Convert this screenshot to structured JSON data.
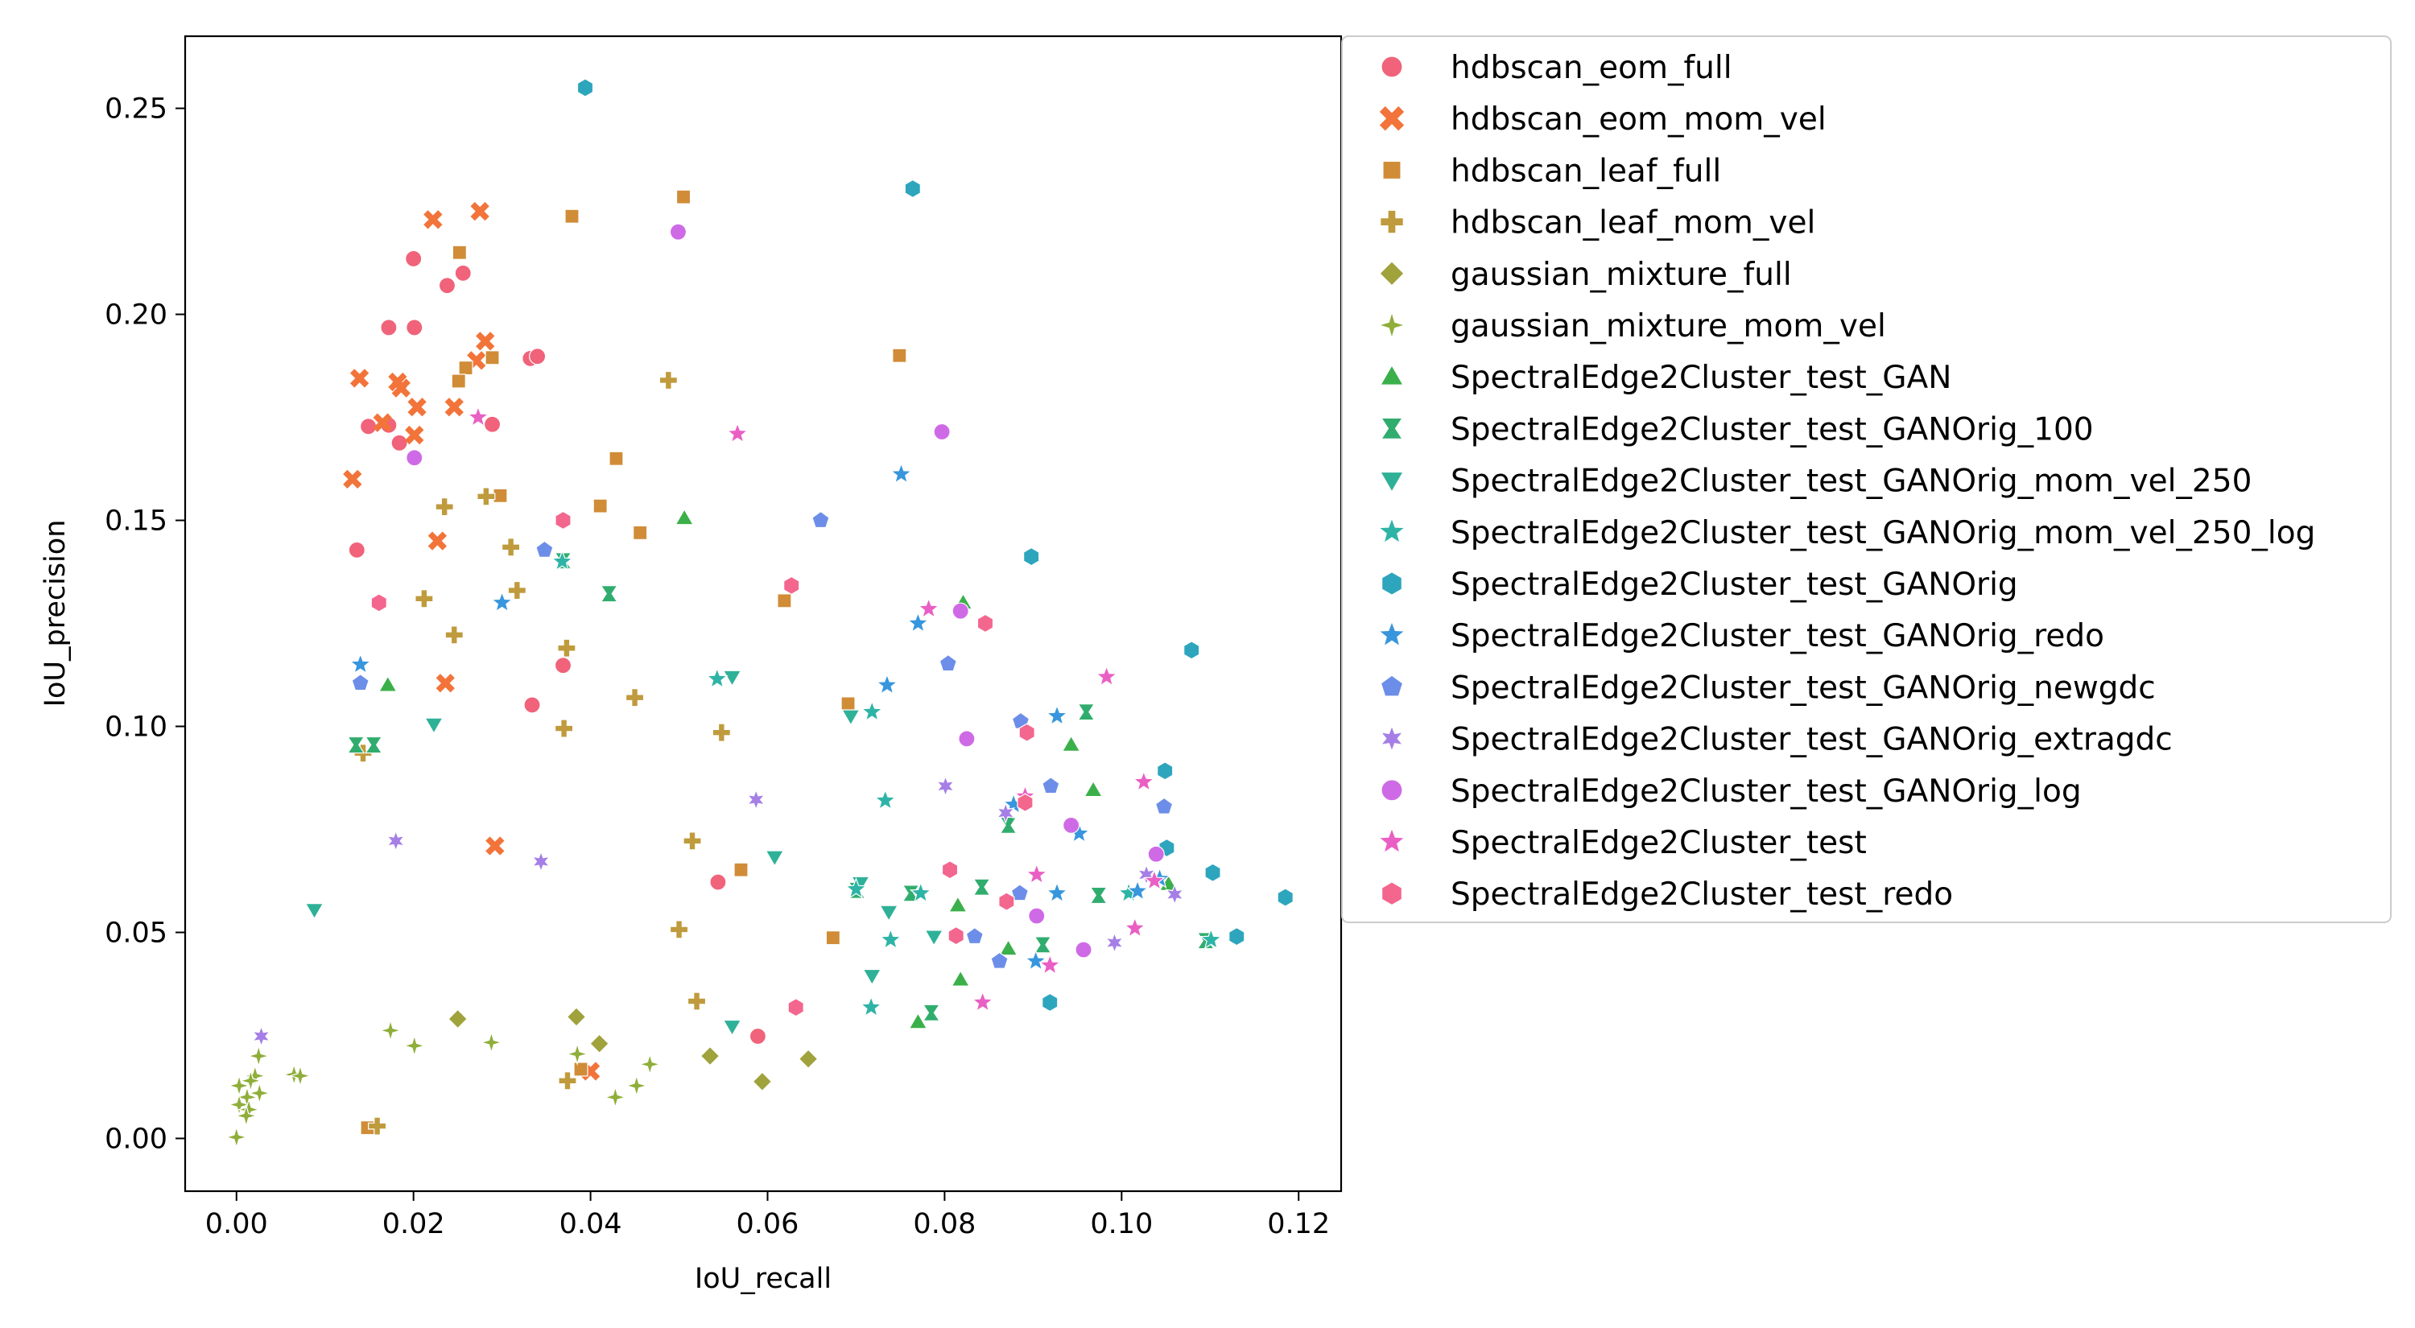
{
  "chart_data": {
    "type": "scatter",
    "title": "",
    "xlabel": "IoU_recall",
    "ylabel": "IoU_precision",
    "xlim": [
      -0.0058,
      0.1248
    ],
    "ylim": [
      -0.0128,
      0.2675
    ],
    "xticks": [
      0.0,
      0.02,
      0.04,
      0.06,
      0.08,
      0.1,
      0.12
    ],
    "xtick_labels": [
      "0.00",
      "0.02",
      "0.04",
      "0.06",
      "0.08",
      "0.10",
      "0.12"
    ],
    "yticks": [
      0.0,
      0.05,
      0.1,
      0.15,
      0.2,
      0.25
    ],
    "ytick_labels": [
      "0.00",
      "0.05",
      "0.10",
      "0.15",
      "0.20",
      "0.25"
    ],
    "grid": false,
    "legend_position": "outside-right",
    "series": [
      {
        "name": "hdbscan_eom_full",
        "marker": "circle",
        "color": "#f0637a",
        "points": [
          [
            0.02,
            0.2135
          ],
          [
            0.0238,
            0.207
          ],
          [
            0.0256,
            0.21
          ],
          [
            0.0172,
            0.1968
          ],
          [
            0.0201,
            0.1968
          ],
          [
            0.0332,
            0.1893
          ],
          [
            0.034,
            0.1898
          ],
          [
            0.0149,
            0.1728
          ],
          [
            0.0172,
            0.1731
          ],
          [
            0.0184,
            0.1688
          ],
          [
            0.0289,
            0.1733
          ],
          [
            0.0136,
            0.1428
          ],
          [
            0.0369,
            0.1148
          ],
          [
            0.0334,
            0.1052
          ],
          [
            0.0544,
            0.0622
          ],
          [
            0.0589,
            0.0248
          ]
        ]
      },
      {
        "name": "hdbscan_eom_mom_vel",
        "marker": "x",
        "color": "#f2743a",
        "points": [
          [
            0.0222,
            0.223
          ],
          [
            0.0275,
            0.225
          ],
          [
            0.0139,
            0.1845
          ],
          [
            0.0182,
            0.1836
          ],
          [
            0.0186,
            0.1821
          ],
          [
            0.0281,
            0.1935
          ],
          [
            0.0271,
            0.1888
          ],
          [
            0.0165,
            0.1737
          ],
          [
            0.0204,
            0.1775
          ],
          [
            0.0246,
            0.1775
          ],
          [
            0.0201,
            0.1707
          ],
          [
            0.0131,
            0.16
          ],
          [
            0.0227,
            0.145
          ],
          [
            0.0236,
            0.1105
          ],
          [
            0.0292,
            0.071
          ],
          [
            0.04,
            0.0163
          ]
        ]
      },
      {
        "name": "hdbscan_leaf_full",
        "marker": "square",
        "color": "#d08c37",
        "points": [
          [
            0.0379,
            0.2238
          ],
          [
            0.0505,
            0.2285
          ],
          [
            0.0252,
            0.215
          ],
          [
            0.0259,
            0.187
          ],
          [
            0.0251,
            0.1838
          ],
          [
            0.0289,
            0.1895
          ],
          [
            0.0749,
            0.19
          ],
          [
            0.0429,
            0.165
          ],
          [
            0.0298,
            0.156
          ],
          [
            0.0411,
            0.1535
          ],
          [
            0.0456,
            0.147
          ],
          [
            0.0619,
            0.1305
          ],
          [
            0.0691,
            0.1055
          ],
          [
            0.057,
            0.0652
          ],
          [
            0.0674,
            0.0487
          ],
          [
            0.0389,
            0.0168
          ],
          [
            0.0148,
            0.0026
          ]
        ]
      },
      {
        "name": "hdbscan_leaf_mom_vel",
        "marker": "plus",
        "color": "#bf9b3d",
        "points": [
          [
            0.0488,
            0.184
          ],
          [
            0.0282,
            0.1558
          ],
          [
            0.0235,
            0.1533
          ],
          [
            0.031,
            0.1435
          ],
          [
            0.0317,
            0.133
          ],
          [
            0.0212,
            0.131
          ],
          [
            0.0246,
            0.1222
          ],
          [
            0.0373,
            0.119
          ],
          [
            0.045,
            0.107
          ],
          [
            0.037,
            0.0995
          ],
          [
            0.0548,
            0.0985
          ],
          [
            0.0143,
            0.0935
          ],
          [
            0.0515,
            0.0722
          ],
          [
            0.05,
            0.0507
          ],
          [
            0.052,
            0.0333
          ],
          [
            0.0374,
            0.014
          ],
          [
            0.0159,
            0.003
          ]
        ]
      },
      {
        "name": "gaussian_mixture_full",
        "marker": "diamond",
        "color": "#a0a23c",
        "points": [
          [
            0.025,
            0.029
          ],
          [
            0.0384,
            0.0295
          ],
          [
            0.041,
            0.023
          ],
          [
            0.0535,
            0.02
          ],
          [
            0.0646,
            0.0193
          ],
          [
            0.0594,
            0.0138
          ]
        ]
      },
      {
        "name": "gaussian_mixture_mom_vel",
        "marker": "star4",
        "color": "#8fae3a",
        "points": [
          [
            0.0174,
            0.0262
          ],
          [
            0.0201,
            0.0225
          ],
          [
            0.0288,
            0.0233
          ],
          [
            0.0385,
            0.0205
          ],
          [
            0.0467,
            0.018
          ],
          [
            0.0452,
            0.0128
          ],
          [
            0.0428,
            0.01
          ],
          [
            0.0065,
            0.0155
          ],
          [
            0.0072,
            0.0152
          ],
          [
            0.0025,
            0.02
          ],
          [
            0.0021,
            0.0152
          ],
          [
            0.0016,
            0.014
          ],
          [
            0.0003,
            0.0128
          ],
          [
            0.0026,
            0.011
          ],
          [
            0.0012,
            0.01
          ],
          [
            0.0003,
            0.0082
          ],
          [
            0.0014,
            0.007
          ],
          [
            0.0011,
            0.0055
          ],
          [
            0.0,
            0.0003
          ]
        ]
      },
      {
        "name": "SpectralEdge2Cluster_test_GAN",
        "marker": "triangle-up",
        "color": "#3bb04a",
        "points": [
          [
            0.0506,
            0.1505
          ],
          [
            0.0171,
            0.11
          ],
          [
            0.0821,
            0.13
          ],
          [
            0.0943,
            0.0955
          ],
          [
            0.0968,
            0.0845
          ],
          [
            0.0815,
            0.0565
          ],
          [
            0.1053,
            0.0617
          ],
          [
            0.0818,
            0.0385
          ],
          [
            0.077,
            0.0282
          ],
          [
            0.0872,
            0.046
          ]
        ]
      },
      {
        "name": "SpectralEdge2Cluster_test_GANOrig_100",
        "marker": "bowtie",
        "color": "#30ad6e",
        "points": [
          [
            0.0369,
            0.1402
          ],
          [
            0.0421,
            0.1322
          ],
          [
            0.0135,
            0.0955
          ],
          [
            0.0155,
            0.0955
          ],
          [
            0.0701,
            0.0602
          ],
          [
            0.0762,
            0.0595
          ],
          [
            0.0842,
            0.061
          ],
          [
            0.0872,
            0.076
          ],
          [
            0.096,
            0.1035
          ],
          [
            0.0974,
            0.059
          ],
          [
            0.0911,
            0.047
          ],
          [
            0.0785,
            0.0305
          ],
          [
            0.1095,
            0.048
          ]
        ]
      },
      {
        "name": "SpectralEdge2Cluster_test_GANOrig_mom_vel_250",
        "marker": "triangle-down",
        "color": "#2fb198",
        "points": [
          [
            0.0088,
            0.0555
          ],
          [
            0.0223,
            0.1005
          ],
          [
            0.056,
            0.112
          ],
          [
            0.0694,
            0.1025
          ],
          [
            0.0608,
            0.0683
          ],
          [
            0.0705,
            0.062
          ],
          [
            0.0737,
            0.055
          ],
          [
            0.0788,
            0.049
          ],
          [
            0.0718,
            0.0395
          ],
          [
            0.056,
            0.0272
          ]
        ]
      },
      {
        "name": "SpectralEdge2Cluster_test_GANOrig_mom_vel_250_log",
        "marker": "star",
        "color": "#2eb4a6",
        "points": [
          [
            0.0368,
            0.14
          ],
          [
            0.0543,
            0.1115
          ],
          [
            0.0733,
            0.082
          ],
          [
            0.0718,
            0.1035
          ],
          [
            0.07,
            0.0605
          ],
          [
            0.0773,
            0.0595
          ],
          [
            0.0739,
            0.0482
          ],
          [
            0.0717,
            0.0318
          ],
          [
            0.1008,
            0.0595
          ],
          [
            0.1101,
            0.0482
          ]
        ]
      },
      {
        "name": "SpectralEdge2Cluster_test_GANOrig",
        "marker": "hexagon",
        "color": "#2da6bd",
        "points": [
          [
            0.0394,
            0.255
          ],
          [
            0.0764,
            0.2305
          ],
          [
            0.0898,
            0.1412
          ],
          [
            0.1079,
            0.1185
          ],
          [
            0.1049,
            0.0892
          ],
          [
            0.1051,
            0.0705
          ],
          [
            0.1103,
            0.0645
          ],
          [
            0.1185,
            0.0585
          ],
          [
            0.113,
            0.049
          ],
          [
            0.0919,
            0.033
          ]
        ]
      },
      {
        "name": "SpectralEdge2Cluster_test_GANOrig_redo",
        "marker": "star",
        "color": "#3796dd",
        "points": [
          [
            0.0751,
            0.1612
          ],
          [
            0.077,
            0.125
          ],
          [
            0.0735,
            0.11
          ],
          [
            0.03,
            0.13
          ],
          [
            0.014,
            0.115
          ],
          [
            0.0927,
            0.1025
          ],
          [
            0.0878,
            0.081
          ],
          [
            0.0952,
            0.074
          ],
          [
            0.0927,
            0.0595
          ],
          [
            0.0903,
            0.043
          ],
          [
            0.1018,
            0.06
          ],
          [
            0.1043,
            0.063
          ]
        ]
      },
      {
        "name": "SpectralEdge2Cluster_test_GANOrig_newgdc",
        "marker": "pentagon",
        "color": "#6d8ee8",
        "points": [
          [
            0.066,
            0.15
          ],
          [
            0.0348,
            0.1428
          ],
          [
            0.014,
            0.1105
          ],
          [
            0.0804,
            0.1152
          ],
          [
            0.0886,
            0.1012
          ],
          [
            0.092,
            0.0855
          ],
          [
            0.1048,
            0.0805
          ],
          [
            0.0885,
            0.0595
          ],
          [
            0.0834,
            0.049
          ],
          [
            0.0862,
            0.043
          ]
        ]
      },
      {
        "name": "SpectralEdge2Cluster_test_GANOrig_extragdc",
        "marker": "star6",
        "color": "#a57fe6",
        "points": [
          [
            0.018,
            0.0722
          ],
          [
            0.0344,
            0.0672
          ],
          [
            0.0587,
            0.0822
          ],
          [
            0.0801,
            0.0855
          ],
          [
            0.0869,
            0.079
          ],
          [
            0.1028,
            0.064
          ],
          [
            0.106,
            0.0592
          ],
          [
            0.0992,
            0.0475
          ],
          [
            0.0028,
            0.0248
          ]
        ]
      },
      {
        "name": "SpectralEdge2Cluster_test_GANOrig_log",
        "marker": "circle",
        "color": "#cf6ae6",
        "points": [
          [
            0.0499,
            0.22
          ],
          [
            0.0797,
            0.1715
          ],
          [
            0.0818,
            0.128
          ],
          [
            0.0201,
            0.1652
          ],
          [
            0.0825,
            0.097
          ],
          [
            0.0943,
            0.076
          ],
          [
            0.1039,
            0.069
          ],
          [
            0.0904,
            0.054
          ],
          [
            0.0957,
            0.0458
          ]
        ]
      },
      {
        "name": "SpectralEdge2Cluster_test",
        "marker": "star",
        "color": "#ea5fc4",
        "points": [
          [
            0.0566,
            0.171
          ],
          [
            0.0273,
            0.175
          ],
          [
            0.0782,
            0.1285
          ],
          [
            0.0983,
            0.112
          ],
          [
            0.0891,
            0.083
          ],
          [
            0.1025,
            0.0865
          ],
          [
            0.0904,
            0.064
          ],
          [
            0.1037,
            0.0625
          ],
          [
            0.1015,
            0.051
          ],
          [
            0.0843,
            0.033
          ],
          [
            0.0919,
            0.042
          ]
        ]
      },
      {
        "name": "SpectralEdge2Cluster_test_redo",
        "marker": "hexagon",
        "color": "#f3668e",
        "points": [
          [
            0.0369,
            0.15
          ],
          [
            0.0161,
            0.13
          ],
          [
            0.0627,
            0.1342
          ],
          [
            0.0846,
            0.125
          ],
          [
            0.0893,
            0.0985
          ],
          [
            0.0891,
            0.0815
          ],
          [
            0.0806,
            0.0652
          ],
          [
            0.087,
            0.0575
          ],
          [
            0.0813,
            0.0492
          ],
          [
            0.0632,
            0.0318
          ]
        ]
      }
    ]
  }
}
